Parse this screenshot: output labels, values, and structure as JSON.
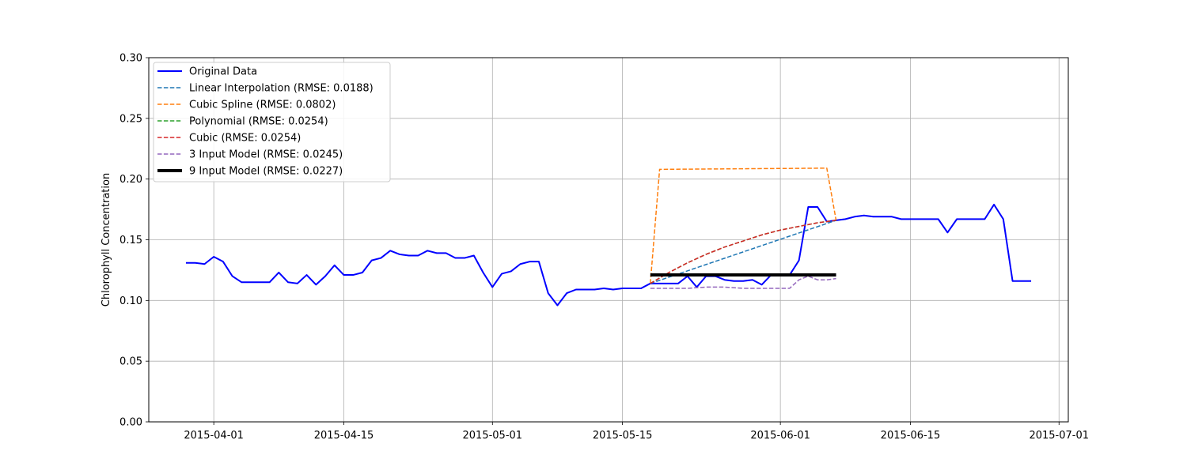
{
  "chart_data": {
    "type": "line",
    "title": "",
    "xlabel": "",
    "ylabel": "Chlorophyll Concentration",
    "x_ticks": [
      "2015-04-01",
      "2015-04-15",
      "2015-05-01",
      "2015-05-15",
      "2015-06-01",
      "2015-06-15",
      "2015-07-01"
    ],
    "y_ticks": [
      "0.00",
      "0.05",
      "0.10",
      "0.15",
      "0.20",
      "0.25",
      "0.30"
    ],
    "xlim": [
      "2015-03-25",
      "2015-07-02"
    ],
    "ylim": [
      0.0,
      0.3
    ],
    "grid": true,
    "legend_position": "top-left",
    "series": [
      {
        "name": "Original Data",
        "color": "#0000ff",
        "style": "solid",
        "x": [
          "2015-03-29",
          "2015-03-30",
          "2015-03-31",
          "2015-04-01",
          "2015-04-02",
          "2015-04-03",
          "2015-04-04",
          "2015-04-05",
          "2015-04-06",
          "2015-04-07",
          "2015-04-08",
          "2015-04-09",
          "2015-04-10",
          "2015-04-11",
          "2015-04-12",
          "2015-04-13",
          "2015-04-14",
          "2015-04-15",
          "2015-04-16",
          "2015-04-17",
          "2015-04-18",
          "2015-04-19",
          "2015-04-20",
          "2015-04-21",
          "2015-04-22",
          "2015-04-23",
          "2015-04-24",
          "2015-04-25",
          "2015-04-26",
          "2015-04-27",
          "2015-04-28",
          "2015-04-29",
          "2015-04-30",
          "2015-05-01",
          "2015-05-02",
          "2015-05-03",
          "2015-05-04",
          "2015-05-05",
          "2015-05-06",
          "2015-05-07",
          "2015-05-08",
          "2015-05-09",
          "2015-05-10",
          "2015-05-11",
          "2015-05-12",
          "2015-05-13",
          "2015-05-14",
          "2015-05-15",
          "2015-05-16",
          "2015-05-17",
          "2015-05-18",
          "2015-05-19",
          "2015-05-20",
          "2015-05-21",
          "2015-05-22",
          "2015-05-23",
          "2015-05-24",
          "2015-05-25",
          "2015-05-26",
          "2015-05-27",
          "2015-05-28",
          "2015-05-29",
          "2015-05-30",
          "2015-05-31",
          "2015-06-01",
          "2015-06-02",
          "2015-06-03",
          "2015-06-04",
          "2015-06-05",
          "2015-06-06",
          "2015-06-07",
          "2015-06-08",
          "2015-06-09",
          "2015-06-10",
          "2015-06-11",
          "2015-06-12",
          "2015-06-13",
          "2015-06-14",
          "2015-06-15",
          "2015-06-16",
          "2015-06-17",
          "2015-06-18",
          "2015-06-19",
          "2015-06-20",
          "2015-06-21",
          "2015-06-22",
          "2015-06-23",
          "2015-06-24",
          "2015-06-25",
          "2015-06-26",
          "2015-06-27",
          "2015-06-28"
        ],
        "y": [
          0.131,
          0.131,
          0.13,
          0.136,
          0.132,
          0.12,
          0.115,
          0.115,
          0.115,
          0.115,
          0.123,
          0.115,
          0.114,
          0.121,
          0.113,
          0.12,
          0.129,
          0.121,
          0.121,
          0.123,
          0.133,
          0.135,
          0.141,
          0.138,
          0.137,
          0.137,
          0.141,
          0.139,
          0.139,
          0.135,
          0.135,
          0.137,
          0.123,
          0.111,
          0.122,
          0.124,
          0.13,
          0.132,
          0.132,
          0.106,
          0.096,
          0.106,
          0.109,
          0.109,
          0.109,
          0.11,
          0.109,
          0.11,
          0.11,
          0.11,
          0.114,
          0.114,
          0.114,
          0.114,
          0.12,
          0.111,
          0.12,
          0.12,
          0.117,
          0.116,
          0.116,
          0.117,
          0.113,
          0.121,
          0.121,
          0.121,
          0.133,
          0.177,
          0.177,
          0.165,
          0.166,
          0.167,
          0.169,
          0.17,
          0.169,
          0.169,
          0.169,
          0.167,
          0.167,
          0.167,
          0.167,
          0.167,
          0.156,
          0.167,
          0.167,
          0.167,
          0.167,
          0.179,
          0.167,
          0.116,
          0.116,
          0.116
        ]
      },
      {
        "name": "Linear Interpolation (RMSE: 0.0188)",
        "color": "#1f77b4",
        "style": "dashed",
        "x": [
          "2015-05-18",
          "2015-06-07"
        ],
        "y": [
          0.114,
          0.166
        ]
      },
      {
        "name": "Cubic Spline (RMSE: 0.0802)",
        "color": "#ff7f0e",
        "style": "dashed",
        "x": [
          "2015-05-18",
          "2015-05-19",
          "2015-06-06",
          "2015-06-07"
        ],
        "y": [
          0.114,
          0.208,
          0.209,
          0.166
        ]
      },
      {
        "name": "Polynomial (RMSE: 0.0254)",
        "color": "#2ca02c",
        "style": "dashed",
        "x": [
          "2015-05-18",
          "2015-05-20",
          "2015-05-22",
          "2015-05-24",
          "2015-05-26",
          "2015-05-28",
          "2015-05-30",
          "2015-06-01",
          "2015-06-03",
          "2015-06-05",
          "2015-06-07"
        ],
        "y": [
          0.114,
          0.123,
          0.131,
          0.138,
          0.144,
          0.149,
          0.154,
          0.158,
          0.161,
          0.164,
          0.166
        ]
      },
      {
        "name": "Cubic (RMSE: 0.0254)",
        "color": "#d62728",
        "style": "dashed",
        "x": [
          "2015-05-18",
          "2015-05-20",
          "2015-05-22",
          "2015-05-24",
          "2015-05-26",
          "2015-05-28",
          "2015-05-30",
          "2015-06-01",
          "2015-06-03",
          "2015-06-05",
          "2015-06-07"
        ],
        "y": [
          0.114,
          0.123,
          0.131,
          0.138,
          0.144,
          0.149,
          0.154,
          0.158,
          0.161,
          0.164,
          0.166
        ]
      },
      {
        "name": "3 Input Model (RMSE: 0.0245)",
        "color": "#9467bd",
        "style": "dashed",
        "x": [
          "2015-05-18",
          "2015-05-20",
          "2015-05-22",
          "2015-05-24",
          "2015-05-26",
          "2015-05-28",
          "2015-05-30",
          "2015-06-01",
          "2015-06-02",
          "2015-06-03",
          "2015-06-04",
          "2015-06-05",
          "2015-06-06",
          "2015-06-07"
        ],
        "y": [
          0.11,
          0.11,
          0.11,
          0.111,
          0.111,
          0.11,
          0.11,
          0.11,
          0.11,
          0.117,
          0.12,
          0.117,
          0.117,
          0.118
        ]
      },
      {
        "name": "9 Input Model (RMSE: 0.0227)",
        "color": "#000000",
        "style": "solid-thick",
        "x": [
          "2015-05-18",
          "2015-06-07"
        ],
        "y": [
          0.121,
          0.121
        ]
      }
    ]
  }
}
